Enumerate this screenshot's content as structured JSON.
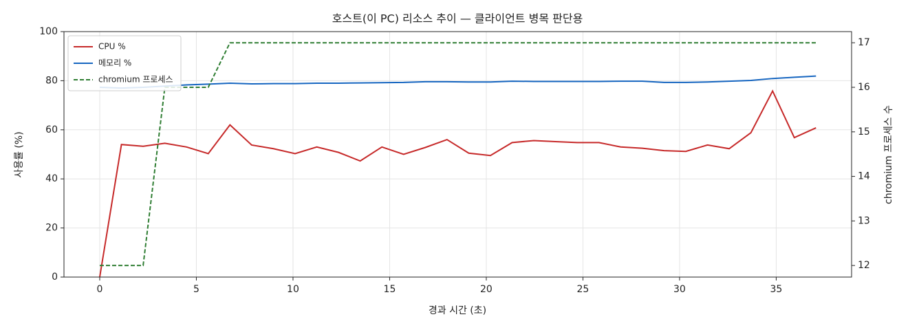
{
  "chart_data": {
    "type": "line",
    "title": "호스트(이 PC) 리소스 추이 — 클라이언트 병목 판단용",
    "x_label": "경과 시간 (초)",
    "y_label": "사용률 (%)",
    "y2_label": "chromium 프로세스 수",
    "x": [
      0,
      1.123,
      2.246,
      3.369,
      4.492,
      5.615,
      6.738,
      7.861,
      8.984,
      10.107,
      11.23,
      12.353,
      13.476,
      14.599,
      15.722,
      16.845,
      17.968,
      19.091,
      20.214,
      21.337,
      22.46,
      23.583,
      24.706,
      25.829,
      26.952,
      28.075,
      29.198,
      30.321,
      31.444,
      32.567,
      33.69,
      34.813,
      35.936,
      37.059
    ],
    "series": [
      {
        "name": "CPU %",
        "color": "#c62828",
        "dash": "solid",
        "axis": "y",
        "values": [
          0,
          54,
          53.3,
          54.5,
          53,
          50.3,
          62,
          53.8,
          52.3,
          50.3,
          53,
          50.8,
          47.3,
          53,
          50,
          52.8,
          56,
          50.5,
          49.5,
          54.8,
          55.6,
          55.2,
          54.8,
          54.8,
          53,
          52.5,
          51.5,
          51.2,
          53.8,
          52.3,
          58.8,
          75.8,
          56.8,
          60.8
        ]
      },
      {
        "name": "메모리 %",
        "color": "#1565c0",
        "dash": "solid",
        "axis": "y",
        "values": [
          77.3,
          77.0,
          77.3,
          77.8,
          78.3,
          78.6,
          79.0,
          78.7,
          78.8,
          78.8,
          79.0,
          79.0,
          79.1,
          79.2,
          79.3,
          79.6,
          79.6,
          79.5,
          79.5,
          79.8,
          79.7,
          79.7,
          79.7,
          79.7,
          79.8,
          79.8,
          79.3,
          79.3,
          79.5,
          79.8,
          80.1,
          80.9,
          81.4,
          81.9
        ]
      },
      {
        "name": "chromium 프로세스",
        "color": "#2e7d32",
        "dash": "dashed",
        "axis": "y2",
        "values": [
          12,
          12,
          12,
          16,
          16,
          16,
          17,
          17,
          17,
          17,
          17,
          17,
          17,
          17,
          17,
          17,
          17,
          17,
          17,
          17,
          17,
          17,
          17,
          17,
          17,
          17,
          17,
          17,
          17,
          17,
          17,
          17,
          17,
          17
        ]
      }
    ],
    "xlim": [
      -1.85,
      38.9
    ],
    "xticks": [
      0,
      5,
      10,
      15,
      20,
      25,
      30,
      35
    ],
    "ylim": [
      0,
      100
    ],
    "yticks": [
      0,
      20,
      40,
      60,
      80,
      100
    ],
    "y2lim": [
      11.74,
      17.25
    ],
    "y2ticks": [
      12,
      13,
      14,
      15,
      16,
      17
    ],
    "grid": true,
    "legend": "upper-left"
  }
}
